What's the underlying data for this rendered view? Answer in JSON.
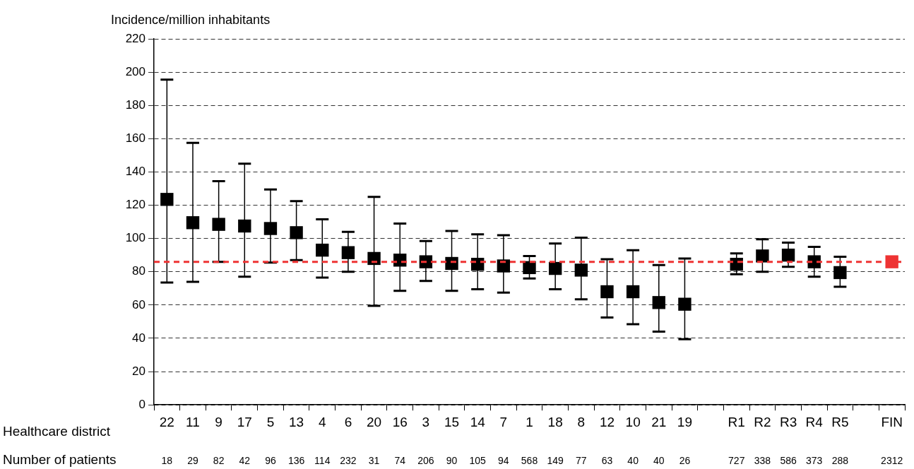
{
  "chart_data": {
    "type": "scatter",
    "ylabel": "Incidence/million inhabitants",
    "xlabel": "Healthcare district",
    "categories": [
      "22",
      "11",
      "9",
      "17",
      "5",
      "13",
      "4",
      "6",
      "20",
      "16",
      "3",
      "15",
      "14",
      "7",
      "1",
      "18",
      "8",
      "12",
      "10",
      "21",
      "19",
      null,
      "R1",
      "R2",
      "R3",
      "R4",
      "R5",
      null,
      "FIN"
    ],
    "values": [
      123.5,
      109.5,
      108.5,
      107.5,
      106,
      103.5,
      93,
      91.5,
      88,
      87,
      86,
      85,
      84.5,
      83.5,
      82.5,
      82,
      81,
      68,
      68,
      61.5,
      60.5,
      null,
      84.5,
      89.5,
      90,
      86,
      79.5,
      null,
      86
    ],
    "colors": [
      "#000000",
      "#000000",
      "#000000",
      "#000000",
      "#000000",
      "#000000",
      "#000000",
      "#000000",
      "#000000",
      "#000000",
      "#000000",
      "#000000",
      "#000000",
      "#000000",
      "#000000",
      "#000000",
      "#000000",
      "#000000",
      "#000000",
      "#000000",
      "#000000",
      "#000000",
      "#000000",
      "#000000",
      "#000000",
      "#000000",
      "#000000",
      "#000000",
      "#ee3333"
    ],
    "errors": [
      [
        73.5,
        195.5
      ],
      [
        74,
        157.5
      ],
      [
        86,
        134.5
      ],
      [
        77,
        145
      ],
      [
        85.5,
        129.5
      ],
      [
        87,
        122.5
      ],
      [
        76.5,
        111.5
      ],
      [
        80,
        104
      ],
      [
        59.5,
        125
      ],
      [
        68.5,
        109
      ],
      [
        74.5,
        98.5
      ],
      [
        68.5,
        104.5
      ],
      [
        69.5,
        102.5
      ],
      [
        67.5,
        102
      ],
      [
        76,
        89.5
      ],
      [
        69.5,
        97
      ],
      [
        63.5,
        100.5
      ],
      [
        52.5,
        87.5
      ],
      [
        48.5,
        93
      ],
      [
        44,
        84
      ],
      [
        39.5,
        88
      ],
      null,
      [
        78.5,
        91
      ],
      [
        80,
        99.5
      ],
      [
        83,
        97.5
      ],
      [
        77,
        95
      ],
      [
        71,
        89
      ],
      null,
      null
    ],
    "marker": "square",
    "ylim": [
      0,
      220
    ],
    "yticks": [
      0,
      20,
      40,
      60,
      80,
      100,
      120,
      140,
      160,
      180,
      200,
      220
    ],
    "grid": "y",
    "ref_lines": [
      {
        "axis": "y",
        "value": 86,
        "color": "#ee3333",
        "line_style": "dashed"
      }
    ],
    "annotations": [
      "Number of patients",
      "18",
      "29",
      "82",
      "42",
      "96",
      "136",
      "114",
      "232",
      "31",
      "74",
      "206",
      "90",
      "105",
      "94",
      "568",
      "149",
      "77",
      "63",
      "40",
      "40",
      "26",
      "727",
      "338",
      "586",
      "373",
      "288",
      "2312"
    ]
  }
}
